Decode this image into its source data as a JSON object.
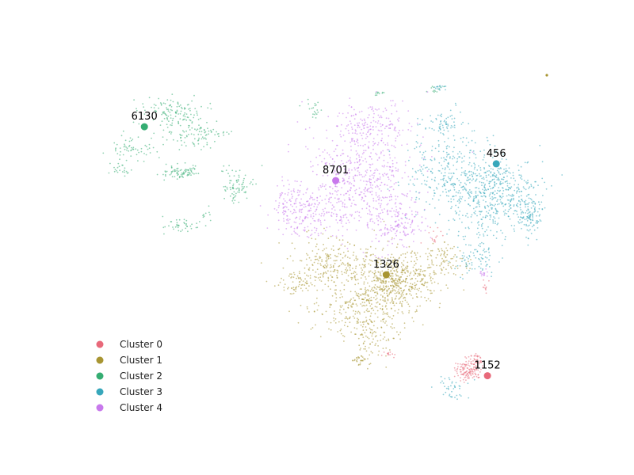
{
  "chart_data": {
    "type": "scatter",
    "title": "",
    "xlabel": "",
    "ylabel": "",
    "axes_visible": false,
    "grid": false,
    "legend_position": "lower-left",
    "series": [
      {
        "name": "Cluster 0",
        "color": "#e8697a",
        "centroid": {
          "x": 0.73,
          "y": -0.81,
          "label": "1152"
        }
      },
      {
        "name": "Cluster 1",
        "color": "#a89532",
        "centroid": {
          "x": 0.27,
          "y": -0.21,
          "label": "1326"
        }
      },
      {
        "name": "Cluster 2",
        "color": "#35ad72",
        "centroid": {
          "x": -0.83,
          "y": 0.67,
          "label": "6130"
        }
      },
      {
        "name": "Cluster 3",
        "color": "#37a7bb",
        "centroid": {
          "x": 0.77,
          "y": 0.45,
          "label": "456"
        }
      },
      {
        "name": "Cluster 4",
        "color": "#c879ec",
        "centroid": {
          "x": 0.04,
          "y": 0.35,
          "label": "8701"
        }
      }
    ],
    "xlim": [
      -1.0,
      1.0
    ],
    "ylim": [
      -1.0,
      1.0
    ]
  }
}
